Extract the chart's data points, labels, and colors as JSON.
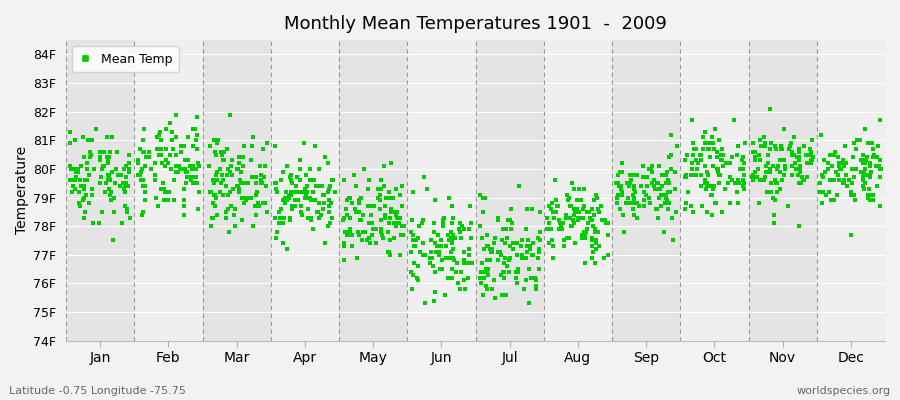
{
  "title": "Monthly Mean Temperatures 1901  -  2009",
  "ylabel": "Temperature",
  "xlabel": "",
  "subtitle_left": "Latitude -0.75 Longitude -75.75",
  "subtitle_right": "worldspecies.org",
  "legend_label": "Mean Temp",
  "ylim": [
    74,
    84.5
  ],
  "ytick_labels": [
    "74F",
    "75F",
    "76F",
    "77F",
    "78F",
    "79F",
    "80F",
    "81F",
    "82F",
    "83F",
    "84F"
  ],
  "ytick_values": [
    74,
    75,
    76,
    77,
    78,
    79,
    80,
    81,
    82,
    83,
    84
  ],
  "months": [
    "Jan",
    "Feb",
    "Mar",
    "Apr",
    "May",
    "Jun",
    "Jul",
    "Aug",
    "Sep",
    "Oct",
    "Nov",
    "Dec"
  ],
  "dot_color": "#00cc00",
  "background_color": "#f2f2f2",
  "band_color_dark": "#e4e4e4",
  "band_color_light": "#efefef",
  "dashed_line_color": "#999999",
  "dot_size": 5,
  "seed": 42,
  "monthly_means": [
    79.75,
    79.95,
    79.55,
    79.05,
    78.15,
    77.15,
    77.05,
    78.15,
    79.25,
    79.95,
    80.15,
    79.95
  ],
  "monthly_stds": [
    0.85,
    0.8,
    0.75,
    0.7,
    0.8,
    0.85,
    0.9,
    0.65,
    0.6,
    0.65,
    0.7,
    0.65
  ],
  "n_years": 109
}
